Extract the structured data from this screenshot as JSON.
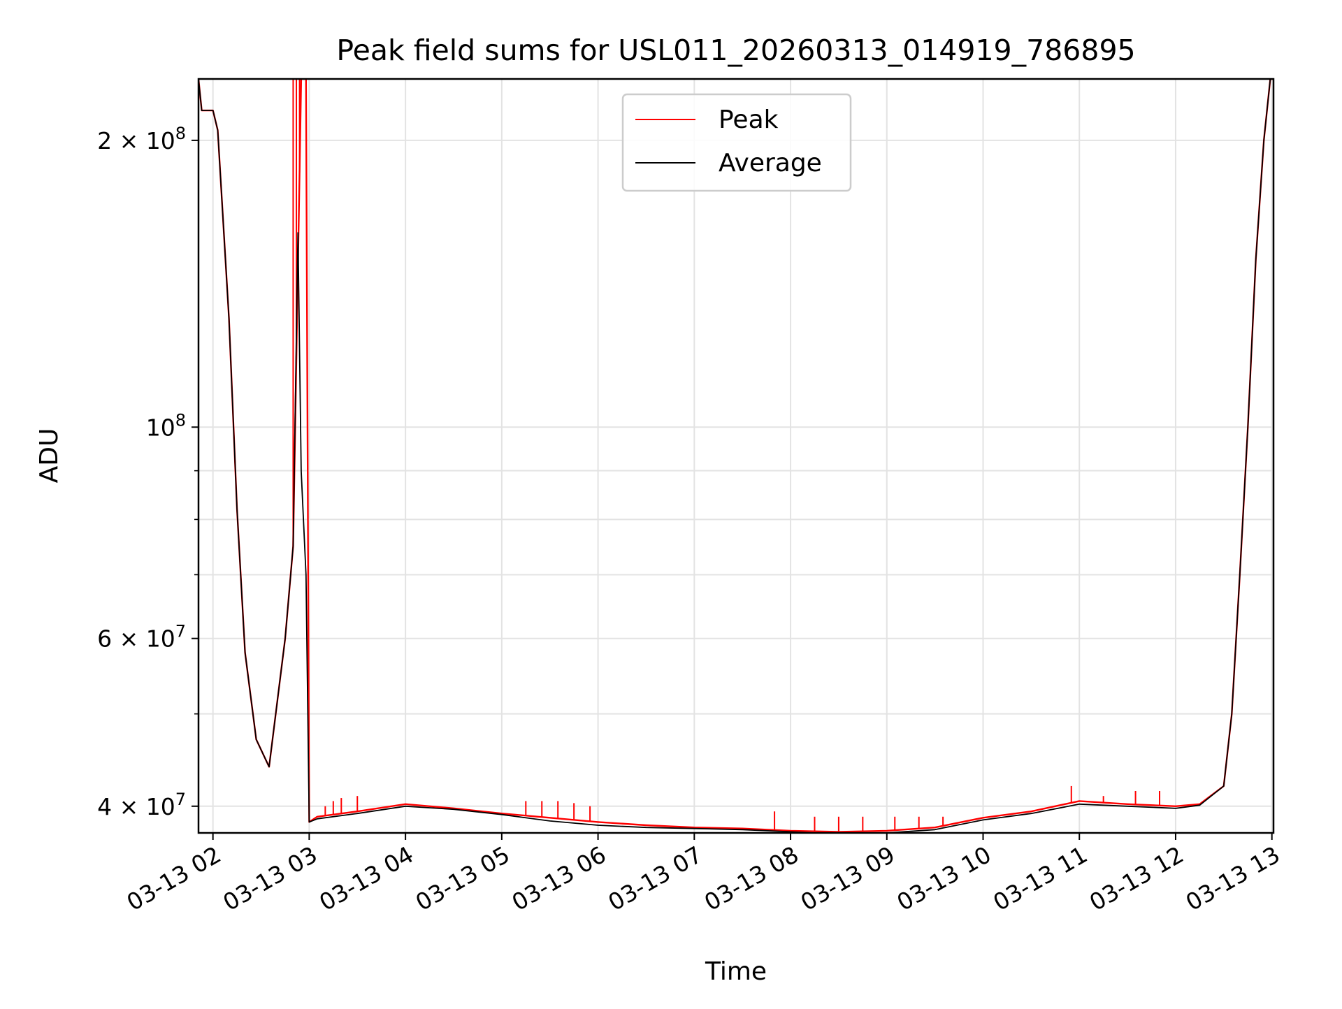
{
  "chart_data": {
    "type": "line",
    "title": "Peak field sums for USL011_20260313_014919_786895",
    "xlabel": "Time",
    "ylabel": "ADU",
    "yscale": "log",
    "xlim": [
      "03-13 01:51",
      "03-13 13:01"
    ],
    "ylim": [
      37500000,
      232000000
    ],
    "grid": true,
    "legend_position": "top-center",
    "x_ticks": [
      "03-13 02",
      "03-13 03",
      "03-13 04",
      "03-13 05",
      "03-13 06",
      "03-13 07",
      "03-13 08",
      "03-13 09",
      "03-13 10",
      "03-13 11",
      "03-13 12",
      "03-13 13"
    ],
    "y_ticks": [
      {
        "value": 40000000,
        "mantissa": "4",
        "exponent": "7"
      },
      {
        "value": 60000000,
        "mantissa": "6",
        "exponent": "7"
      },
      {
        "value": 100000000,
        "mantissa": "",
        "exponent": "8"
      },
      {
        "value": 200000000,
        "mantissa": "2",
        "exponent": "8"
      }
    ],
    "y_minor_ticks": [
      50000000,
      70000000,
      80000000,
      90000000,
      300000000
    ],
    "series": [
      {
        "name": "Peak",
        "color": "#ff0000",
        "x": [
          "03-13 01:51",
          "03-13 01:53",
          "03-13 02:00",
          "03-13 02:03",
          "03-13 02:10",
          "03-13 02:15",
          "03-13 02:20",
          "03-13 02:27",
          "03-13 02:35",
          "03-13 02:45",
          "03-13 02:50",
          "03-13 02:55",
          "03-13 02:58",
          "03-13 03:00",
          "03-13 03:05",
          "03-13 03:30",
          "03-13 04:00",
          "03-13 04:30",
          "03-13 05:00",
          "03-13 05:30",
          "03-13 06:00",
          "03-13 06:30",
          "03-13 07:00",
          "03-13 07:30",
          "03-13 08:00",
          "03-13 08:30",
          "03-13 09:00",
          "03-13 09:30",
          "03-13 10:00",
          "03-13 10:30",
          "03-13 11:00",
          "03-13 11:30",
          "03-13 12:00",
          "03-13 12:15",
          "03-13 12:30",
          "03-13 12:35",
          "03-13 12:40",
          "03-13 12:45",
          "03-13 12:50",
          "03-13 12:55",
          "03-13 12:59",
          "03-13 13:01"
        ],
        "y": [
          232000000,
          215000000,
          215000000,
          205000000,
          130000000,
          82000000,
          58000000,
          47000000,
          44000000,
          60000000,
          75000000,
          232000000,
          232000000,
          38500000,
          39000000,
          39500000,
          40200000,
          39800000,
          39300000,
          38900000,
          38500000,
          38200000,
          38000000,
          37900000,
          37700000,
          37600000,
          37700000,
          38000000,
          38900000,
          39500000,
          40500000,
          40200000,
          40000000,
          40200000,
          42000000,
          50000000,
          70000000,
          100000000,
          150000000,
          200000000,
          232000000,
          232000000
        ],
        "spikes": [
          {
            "x": "03-13 02:50",
            "y": 232000000
          },
          {
            "x": "03-13 02:52",
            "y": 232000000
          },
          {
            "x": "03-13 02:54",
            "y": 232000000
          },
          {
            "x": "03-13 02:56",
            "y": 232000000
          },
          {
            "x": "03-13 03:10",
            "y": 40000000
          },
          {
            "x": "03-13 03:15",
            "y": 40500000
          },
          {
            "x": "03-13 03:20",
            "y": 40800000
          },
          {
            "x": "03-13 03:30",
            "y": 41000000
          },
          {
            "x": "03-13 05:15",
            "y": 40500000
          },
          {
            "x": "03-13 05:25",
            "y": 40500000
          },
          {
            "x": "03-13 05:35",
            "y": 40500000
          },
          {
            "x": "03-13 05:45",
            "y": 40300000
          },
          {
            "x": "03-13 05:55",
            "y": 40000000
          },
          {
            "x": "03-13 07:50",
            "y": 39500000
          },
          {
            "x": "03-13 08:15",
            "y": 39000000
          },
          {
            "x": "03-13 08:30",
            "y": 39000000
          },
          {
            "x": "03-13 08:45",
            "y": 39000000
          },
          {
            "x": "03-13 09:05",
            "y": 39000000
          },
          {
            "x": "03-13 09:20",
            "y": 39000000
          },
          {
            "x": "03-13 09:35",
            "y": 39000000
          },
          {
            "x": "03-13 10:55",
            "y": 42000000
          },
          {
            "x": "03-13 11:15",
            "y": 41000000
          },
          {
            "x": "03-13 11:35",
            "y": 41500000
          },
          {
            "x": "03-13 11:50",
            "y": 41500000
          }
        ]
      },
      {
        "name": "Average",
        "color": "#000000",
        "x": [
          "03-13 01:51",
          "03-13 01:53",
          "03-13 02:00",
          "03-13 02:03",
          "03-13 02:10",
          "03-13 02:15",
          "03-13 02:20",
          "03-13 02:27",
          "03-13 02:35",
          "03-13 02:45",
          "03-13 02:50",
          "03-13 02:53",
          "03-13 02:55",
          "03-13 02:58",
          "03-13 03:00",
          "03-13 03:05",
          "03-13 03:30",
          "03-13 04:00",
          "03-13 04:30",
          "03-13 05:00",
          "03-13 05:30",
          "03-13 06:00",
          "03-13 06:30",
          "03-13 07:00",
          "03-13 07:30",
          "03-13 08:00",
          "03-13 08:30",
          "03-13 09:00",
          "03-13 09:30",
          "03-13 10:00",
          "03-13 10:30",
          "03-13 11:00",
          "03-13 11:30",
          "03-13 12:00",
          "03-13 12:15",
          "03-13 12:30",
          "03-13 12:35",
          "03-13 12:40",
          "03-13 12:45",
          "03-13 12:50",
          "03-13 12:55",
          "03-13 12:59",
          "03-13 13:01"
        ],
        "y": [
          232000000,
          215000000,
          215000000,
          205000000,
          130000000,
          82000000,
          58000000,
          47000000,
          44000000,
          60000000,
          75000000,
          160000000,
          90000000,
          70000000,
          38500000,
          38800000,
          39300000,
          40000000,
          39700000,
          39200000,
          38600000,
          38200000,
          38000000,
          37900000,
          37800000,
          37600000,
          37400000,
          37500000,
          37800000,
          38700000,
          39300000,
          40200000,
          40000000,
          39800000,
          40100000,
          42000000,
          50000000,
          70000000,
          100000000,
          150000000,
          200000000,
          232000000,
          232000000
        ]
      }
    ]
  }
}
